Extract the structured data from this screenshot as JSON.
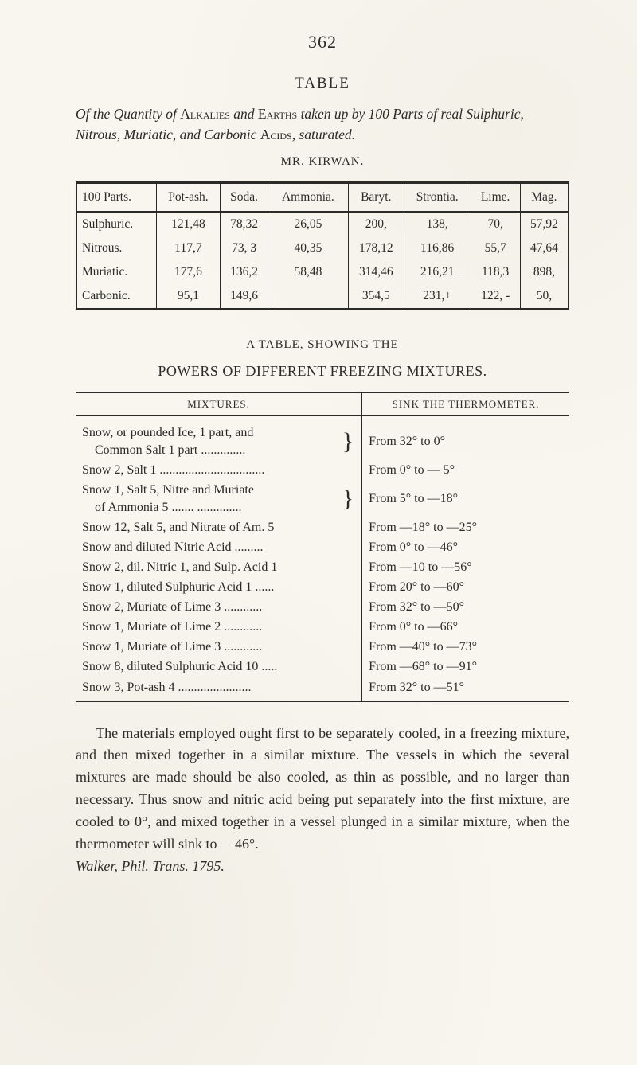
{
  "page_number": "362",
  "table_heading": "TABLE",
  "caption_html": "Of the Quantity of <span class='upright'>Alkalies</span> and <span class='upright'>Earths</span> taken up by 100 Parts of real Sulphuric, Nitrous, Muriatic, and Carbonic <span class='upright'>Acids</span>, saturated.",
  "mr_line": "MR. KIRWAN.",
  "table1": {
    "columns": [
      "100 Parts.",
      "Pot-ash.",
      "Soda.",
      "Ammonia.",
      "Baryt.",
      "Strontia.",
      "Lime.",
      "Mag."
    ],
    "rows": [
      [
        "Sulphuric.",
        "121,48",
        "78,32",
        "26,05",
        "200,",
        "138,",
        "70,",
        "57,92"
      ],
      [
        "Nitrous.",
        "117,7",
        "73, 3",
        "40,35",
        "178,12",
        "116,86",
        "55,7",
        "47,64"
      ],
      [
        "Muriatic.",
        "177,6",
        "136,2",
        "58,48",
        "314,46",
        "216,21",
        "118,3",
        "898,"
      ],
      [
        "Carbonic.",
        "95,1",
        "149,6",
        "",
        "354,5",
        "231,+",
        "122, -",
        "50,"
      ]
    ]
  },
  "subheading": "A TABLE, SHOWING THE",
  "powers_heading": "POWERS OF DIFFERENT FREEZING MIXTURES.",
  "table2": {
    "columns": [
      "MIXTURES.",
      "SINK THE THERMOMETER."
    ],
    "rows": [
      {
        "mix": "Snow, or pounded Ice, 1 part, and<br>&nbsp;&nbsp;&nbsp;&nbsp;Common Salt 1 part ..............",
        "brace": true,
        "sink": "From 32° to 0°"
      },
      {
        "mix": "Snow 2, Salt 1 .................................",
        "sink": "From 0° to — 5°"
      },
      {
        "mix": "Snow 1, Salt 5, Nitre and Muriate<br>&nbsp;&nbsp;&nbsp;&nbsp;of Ammonia 5 ....... ..............",
        "brace": true,
        "sink": "From 5° to —18°"
      },
      {
        "mix": "Snow 12, Salt 5, and Nitrate of Am. 5",
        "sink": "From —18° to —25°"
      },
      {
        "mix": "Snow and diluted Nitric Acid .........",
        "sink": "From 0° to —46°"
      },
      {
        "mix": "Snow 2, dil. Nitric 1, and Sulp. Acid 1",
        "sink": "From —10 to —56°"
      },
      {
        "mix": "Snow 1, diluted Sulphuric Acid 1 ......",
        "sink": "From 20° to —60°"
      },
      {
        "mix": "Snow 2, Muriate of Lime 3 ............",
        "sink": "From 32° to —50°"
      },
      {
        "mix": "Snow 1, Muriate of Lime 2 ............",
        "sink": "From 0° to —66°"
      },
      {
        "mix": "Snow 1, Muriate of Lime 3 ............",
        "sink": "From —40° to —73°"
      },
      {
        "mix": "Snow 8, diluted Sulphuric Acid 10 .....",
        "sink": "From —68° to —91°"
      },
      {
        "mix": "Snow 3, Pot-ash 4 .......................",
        "sink": "From 32° to —51°"
      }
    ]
  },
  "body_paragraph": "The materials employed ought first to be separately cooled, in a freezing mixture, and then mixed together in a similar mixture. The vessels in which the several mixtures are made should be also cooled, as thin as possible, and no larger than necessary. Thus snow and nitric acid being put separately into the first mixture, are cooled to 0°, and mixed together in a vessel plunged in a similar mixture, when the thermometer will sink to —46°.",
  "citation": "Walker, Phil. Trans. 1795."
}
